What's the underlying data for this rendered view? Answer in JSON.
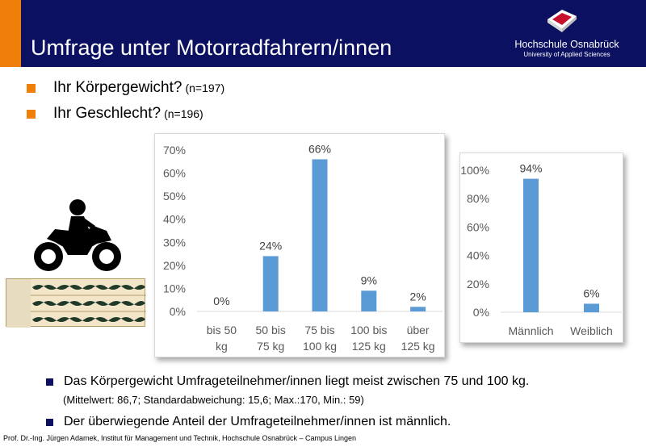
{
  "header": {
    "title": "Umfrage unter Motorradfahrern/innen",
    "logo_name": "Hochschule Osnabrück",
    "logo_sub": "University of Applied Sciences"
  },
  "questions": [
    {
      "text": "Ihr Körpergewicht?",
      "n": "(n=197)"
    },
    {
      "text": "Ihr Geschlecht?",
      "n": "(n=196)"
    }
  ],
  "chart_data": [
    {
      "type": "bar",
      "categories": [
        [
          "bis 50",
          "kg"
        ],
        [
          "50 bis",
          "75 kg"
        ],
        [
          "75 bis",
          "100 kg"
        ],
        [
          "100 bis",
          "125 kg"
        ],
        [
          "über",
          "125 kg"
        ]
      ],
      "values": [
        0,
        24,
        66,
        9,
        2
      ],
      "data_labels": [
        "0%",
        "24%",
        "66%",
        "9%",
        "2%"
      ],
      "yticks": [
        "0%",
        "10%",
        "20%",
        "30%",
        "40%",
        "50%",
        "60%",
        "70%"
      ],
      "ylim": [
        0,
        70
      ],
      "grid": false,
      "color": "#5b9bd5"
    },
    {
      "type": "bar",
      "categories": [
        [
          "Männlich"
        ],
        [
          "Weiblich"
        ]
      ],
      "values": [
        94,
        6
      ],
      "data_labels": [
        "94%",
        "6%"
      ],
      "yticks": [
        "0%",
        "20%",
        "40%",
        "60%",
        "80%",
        "100%"
      ],
      "ylim": [
        0,
        100
      ],
      "grid": false,
      "color": "#5b9bd5"
    }
  ],
  "notes": {
    "weight": "Das Körpergewicht Umfrageteilnehmer/innen liegt meist zwischen 75 und 100 kg.",
    "weight_stats": "(Mittelwert: 86,7; Standardabweichung:  15,6; Max.:170, Min.: 59)",
    "gender": "Der überwiegende Anteil der Umfrageteilnehmer/innen ist männlich."
  },
  "footer": "Prof. Dr.-Ing. Jürgen Adamek,  Institut für Management und Technik, Hochschule Osnabrück – Campus Lingen",
  "icons": [
    "motorcycle-rider-icon",
    "audio-waveform-image",
    "university-logo-icon"
  ]
}
